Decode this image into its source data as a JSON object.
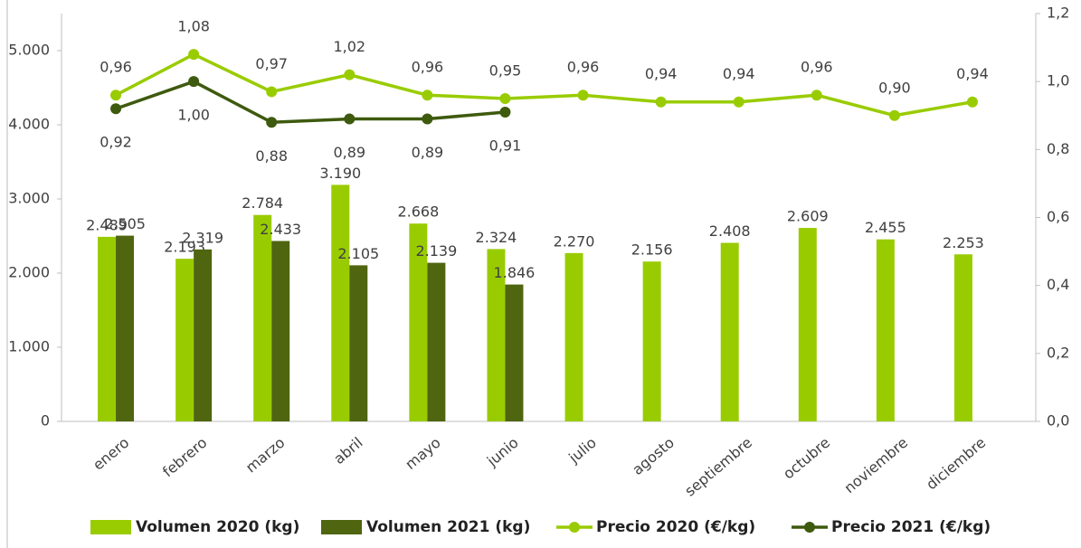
{
  "chart_data": {
    "type": "combo",
    "categories": [
      "enero",
      "febrero",
      "marzo",
      "abril",
      "mayo",
      "junio",
      "julio",
      "agosto",
      "septiembre",
      "octubre",
      "noviembre",
      "diciembre"
    ],
    "series": [
      {
        "name": "Volumen 2020  (kg)",
        "type": "bar",
        "color": "#99cc00",
        "values": [
          2489,
          2193,
          2784,
          3190,
          2668,
          2324,
          2270,
          2156,
          2408,
          2609,
          2455,
          2253
        ],
        "value_labels": [
          "2.489",
          "2.193",
          "2.784",
          "3.190",
          "2.668",
          "2.324",
          "2.270",
          "2.156",
          "2.408",
          "2.609",
          "2.455",
          "2.253"
        ]
      },
      {
        "name": "Volumen 2021 (kg)",
        "type": "bar",
        "color": "#4f6510",
        "values": [
          2505,
          2319,
          2433,
          2105,
          2139,
          1846,
          null,
          null,
          null,
          null,
          null,
          null
        ],
        "value_labels": [
          "2.505",
          "2.319",
          "2.433",
          "2.105",
          "2.139",
          "1.846",
          null,
          null,
          null,
          null,
          null,
          null
        ]
      },
      {
        "name": "Precio 2020 (€/kg)",
        "type": "line",
        "axis": "y2",
        "color": "#99cc00",
        "label_pos": "above",
        "values": [
          0.96,
          1.08,
          0.97,
          1.02,
          0.96,
          0.95,
          0.96,
          0.94,
          0.94,
          0.96,
          0.9,
          0.94
        ],
        "value_labels": [
          "0,96",
          "1,08",
          "0,97",
          "1,02",
          "0,96",
          "0,95",
          "0,96",
          "0,94",
          "0,94",
          "0,96",
          "0,90",
          "0,94"
        ]
      },
      {
        "name": "Precio 2021 (€/kg)",
        "type": "line",
        "axis": "y2",
        "color": "#3e5a0e",
        "label_pos": "below",
        "values": [
          0.92,
          1.0,
          0.88,
          0.89,
          0.89,
          0.91,
          null,
          null,
          null,
          null,
          null,
          null
        ],
        "value_labels": [
          "0,92",
          "1,00",
          "0,88",
          "0,89",
          "0,89",
          "0,91",
          null,
          null,
          null,
          null,
          null,
          null
        ]
      }
    ],
    "ylim": [
      0,
      5500
    ],
    "yticks": [
      0,
      {
        "value": 1000,
        "label": "1.000"
      },
      {
        "value": 2000,
        "label": "2.000"
      },
      {
        "value": 3000,
        "label": "3.000"
      },
      {
        "value": 4000,
        "label": "4.000"
      },
      {
        "value": 5000,
        "label": "5.000"
      }
    ],
    "y2lim": [
      0,
      1.2
    ],
    "y2ticks": [
      {
        "value": 0,
        "label": "0,0"
      },
      {
        "value": 0.2,
        "label": "0,2"
      },
      {
        "value": 0.4,
        "label": "0,4"
      },
      {
        "value": 0.6,
        "label": "0,6"
      },
      {
        "value": 0.8,
        "label": "0,8"
      },
      {
        "value": 1.0,
        "label": "1,0"
      },
      {
        "value": 1.2,
        "label": "1,2"
      }
    ],
    "grid": false,
    "legend": "bottom"
  }
}
